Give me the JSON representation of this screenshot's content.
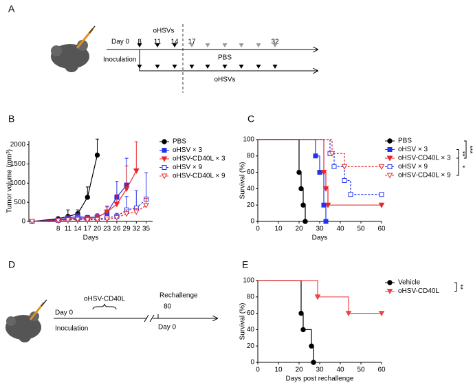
{
  "diagrams": {
    "A": {
      "panel_label": "A",
      "day0": "Day 0",
      "treatment": "oHSVs",
      "days": [
        "8",
        "11",
        "14",
        "17",
        "32"
      ],
      "upper_arm": "PBS",
      "lower_arm": "oHSVs",
      "inoculation": "Inoculation"
    },
    "D": {
      "panel_label": "D",
      "day0": "Day 0",
      "treatment": "oHSV-CD40L",
      "rechallenge": "Rechallenge",
      "rechallenge_day": "80",
      "day0_after": "Day 0",
      "inoculation": "Inoculation"
    }
  },
  "chart_data": [
    {
      "type": "line",
      "panel_label": "B",
      "xlabel": "Days",
      "ylabel": "Tumor volume (mm³)",
      "x": [
        0,
        8,
        11,
        14,
        17,
        20,
        23,
        26,
        29,
        32,
        35
      ],
      "xlim": [
        -1,
        37
      ],
      "xticks": [
        8,
        11,
        14,
        17,
        20,
        23,
        26,
        29,
        32,
        35
      ],
      "ylim": [
        0,
        2100
      ],
      "yticks": [
        0,
        500,
        1000,
        1500,
        2000
      ],
      "legend": "outside-right",
      "series": [
        {
          "name": "PBS",
          "color": "#000000",
          "marker": "circle",
          "dashed": false,
          "values": [
            0,
            70,
            130,
            200,
            630,
            1730,
            null,
            null,
            null,
            null,
            null
          ],
          "errors": [
            0,
            40,
            170,
            100,
            270,
            420,
            null,
            null,
            null,
            null,
            null
          ]
        },
        {
          "name": "oHSV × 3",
          "color": "#2233ee",
          "marker": "square",
          "dashed": false,
          "values": [
            0,
            40,
            90,
            130,
            100,
            120,
            230,
            630,
            950,
            null,
            null
          ],
          "errors": [
            0,
            30,
            60,
            80,
            60,
            80,
            150,
            420,
            700,
            null,
            null
          ]
        },
        {
          "name": "oHSV-CD40L × 3",
          "color": "#e8262a",
          "marker": "triangle",
          "dashed": false,
          "values": [
            0,
            30,
            60,
            100,
            80,
            100,
            250,
            450,
            850,
            1320,
            null
          ],
          "errors": [
            0,
            20,
            50,
            60,
            50,
            80,
            150,
            250,
            600,
            760,
            null
          ]
        },
        {
          "name": "oHSV × 9",
          "color": "#2233ee",
          "marker": "square-open",
          "dashed": true,
          "values": [
            0,
            30,
            50,
            80,
            60,
            60,
            100,
            130,
            300,
            350,
            580
          ],
          "errors": [
            0,
            20,
            40,
            50,
            40,
            40,
            60,
            80,
            350,
            450,
            690
          ]
        },
        {
          "name": "oHSV-CD40L × 9",
          "color": "#e8262a",
          "marker": "triangle-open",
          "dashed": true,
          "values": [
            0,
            20,
            40,
            50,
            40,
            50,
            60,
            100,
            200,
            250,
            420
          ],
          "errors": [
            0,
            20,
            30,
            30,
            30,
            30,
            40,
            60,
            100,
            80,
            180
          ]
        }
      ]
    },
    {
      "type": "survival",
      "panel_label": "C",
      "xlabel": "Days",
      "ylabel": "Survival (%)",
      "xlim": [
        0,
        60
      ],
      "xticks": [
        0,
        10,
        20,
        30,
        40,
        50,
        60
      ],
      "ylim": [
        0,
        100
      ],
      "yticks": [
        0,
        20,
        40,
        60,
        80,
        100
      ],
      "legend": "outside-right",
      "annotations": [
        "**",
        "***",
        "*"
      ],
      "series": [
        {
          "name": "PBS",
          "color": "#000000",
          "marker": "circle",
          "dashed": false,
          "x": [
            0,
            20,
            21,
            22,
            23
          ],
          "values": [
            100,
            60,
            40,
            20,
            0
          ]
        },
        {
          "name": "oHSV × 3",
          "color": "#2233ee",
          "marker": "square",
          "dashed": false,
          "x": [
            0,
            28,
            30,
            32,
            33
          ],
          "values": [
            100,
            80,
            60,
            20,
            0
          ]
        },
        {
          "name": "oHSV-CD40L × 3",
          "color": "#e8262a",
          "marker": "triangle",
          "dashed": false,
          "x": [
            0,
            32,
            33,
            34,
            60
          ],
          "values": [
            100,
            60,
            40,
            20,
            20
          ]
        },
        {
          "name": "oHSV × 9",
          "color": "#2233ee",
          "marker": "square-open",
          "dashed": true,
          "x": [
            0,
            35,
            37,
            42,
            45,
            60
          ],
          "values": [
            100,
            83,
            67,
            50,
            33,
            33
          ]
        },
        {
          "name": "oHSV-CD40L × 9",
          "color": "#e8262a",
          "marker": "triangle-open",
          "dashed": true,
          "x": [
            0,
            36,
            42,
            60
          ],
          "values": [
            100,
            83,
            67,
            67
          ]
        }
      ]
    },
    {
      "type": "survival",
      "panel_label": "E",
      "xlabel": "Days post rechallenge",
      "ylabel": "Survival (%)",
      "xlim": [
        0,
        60
      ],
      "xticks": [
        0,
        10,
        20,
        30,
        40,
        50,
        60
      ],
      "ylim": [
        0,
        100
      ],
      "yticks": [
        0,
        20,
        40,
        60,
        80,
        100
      ],
      "legend": "outside-right",
      "annotations": [
        "**"
      ],
      "series": [
        {
          "name": "Vehicle",
          "color": "#000000",
          "marker": "circle",
          "dashed": false,
          "x": [
            0,
            21,
            22,
            26,
            27
          ],
          "values": [
            100,
            60,
            40,
            20,
            0
          ]
        },
        {
          "name": "oHSV-CD40L",
          "color": "#ef4444",
          "marker": "triangle",
          "dashed": false,
          "x": [
            0,
            29,
            44,
            60
          ],
          "values": [
            100,
            80,
            60,
            60
          ]
        }
      ]
    }
  ]
}
